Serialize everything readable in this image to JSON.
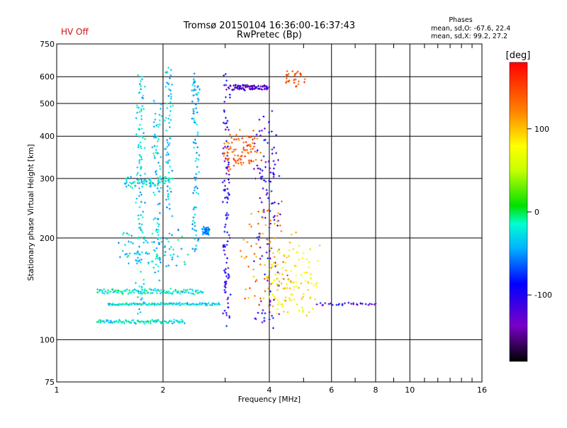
{
  "header": {
    "status": "HV Off",
    "title_line1": "Tromsø 20150104 16:36:00-16:37:43",
    "title_line2": "RwPretec (Bp)",
    "phase_heading": "Phases",
    "phase_o": "mean, sd,O: -67.6, 22.4",
    "phase_x": "mean, sd,X:  99.2, 27.2"
  },
  "chart_data": {
    "type": "scatter",
    "xlabel": "Frequency [MHz]",
    "ylabel": "Stationary phase Virtual Height [km]",
    "x_scale": "log",
    "y_scale": "log",
    "xlim": [
      1,
      16
    ],
    "ylim": [
      75,
      750
    ],
    "x_ticks": [
      {
        "value": 1,
        "label": "1"
      },
      {
        "value": 2,
        "label": "2"
      },
      {
        "value": 4,
        "label": "4"
      },
      {
        "value": 6,
        "label": "6"
      },
      {
        "value": 8,
        "label": "8"
      },
      {
        "value": 10,
        "label": "10"
      },
      {
        "value": 16,
        "label": "16"
      }
    ],
    "x_grid": [
      2,
      4,
      6,
      8,
      10
    ],
    "x_minor": [
      3,
      5,
      7,
      9,
      11,
      12,
      13,
      14,
      15
    ],
    "y_ticks": [
      {
        "value": 75,
        "label": "75"
      },
      {
        "value": 100,
        "label": "100"
      },
      {
        "value": 200,
        "label": "200"
      },
      {
        "value": 300,
        "label": "300"
      },
      {
        "value": 400,
        "label": "400"
      },
      {
        "value": 500,
        "label": "500"
      },
      {
        "value": 600,
        "label": "600"
      },
      {
        "value": 750,
        "label": "750"
      }
    ],
    "y_grid": [
      100,
      200,
      300,
      400,
      500,
      600
    ],
    "colorbar": {
      "label": "[deg]",
      "range": [
        -180,
        180
      ],
      "ticks": [
        {
          "value": 100,
          "label": "100"
        },
        {
          "value": 0,
          "label": "0"
        },
        {
          "value": -100,
          "label": "-100"
        }
      ]
    },
    "traces": [
      {
        "f0": 1.3,
        "f1": 2.3,
        "h0": 112,
        "h1": 114,
        "phase": -25,
        "n": 90,
        "jf": 0.004,
        "jh": 0.008
      },
      {
        "f0": 1.4,
        "f1": 2.9,
        "h0": 127,
        "h1": 128,
        "phase": -25,
        "n": 120,
        "jf": 0.004,
        "jh": 0.006
      },
      {
        "f0": 1.3,
        "f1": 2.6,
        "h0": 137,
        "h1": 141,
        "phase": -22,
        "n": 110,
        "jf": 0.004,
        "jh": 0.006
      },
      {
        "f0": 1.5,
        "f1": 2.3,
        "h0": 165,
        "h1": 210,
        "phase": -30,
        "n": 80,
        "jf": 0.03,
        "jh": 0.04
      },
      {
        "f0": 1.55,
        "f1": 2.1,
        "h0": 285,
        "h1": 300,
        "phase": -28,
        "n": 70,
        "jf": 0.02,
        "jh": 0.02
      },
      {
        "f0": 1.7,
        "f1": 1.75,
        "h0": 120,
        "h1": 600,
        "phase": -30,
        "n": 110,
        "jf": 0.02,
        "jh": 0.02
      },
      {
        "f0": 1.9,
        "f1": 1.95,
        "h0": 140,
        "h1": 520,
        "phase": -35,
        "n": 80,
        "jf": 0.02,
        "jh": 0.02
      },
      {
        "f0": 2.05,
        "f1": 2.1,
        "h0": 230,
        "h1": 640,
        "phase": -35,
        "n": 70,
        "jf": 0.02,
        "jh": 0.02
      },
      {
        "f0": 2.45,
        "f1": 2.5,
        "h0": 180,
        "h1": 620,
        "phase": -40,
        "n": 90,
        "jf": 0.02,
        "jh": 0.02
      },
      {
        "f0": 2.6,
        "f1": 2.7,
        "h0": 205,
        "h1": 215,
        "phase": -60,
        "n": 40,
        "jf": 0.01,
        "jh": 0.01
      },
      {
        "f0": 3.0,
        "f1": 3.05,
        "h0": 110,
        "h1": 600,
        "phase": -110,
        "n": 110,
        "jf": 0.02,
        "jh": 0.03
      },
      {
        "f0": 3.1,
        "f1": 3.9,
        "h0": 555,
        "h1": 560,
        "phase": -125,
        "n": 90,
        "jf": 0.03,
        "jh": 0.015
      },
      {
        "f0": 3.0,
        "f1": 3.7,
        "h0": 320,
        "h1": 410,
        "phase": 140,
        "n": 90,
        "jf": 0.03,
        "jh": 0.03
      },
      {
        "f0": 3.7,
        "f1": 4.2,
        "h0": 110,
        "h1": 470,
        "phase": -110,
        "n": 120,
        "jf": 0.03,
        "jh": 0.05
      },
      {
        "f0": 3.4,
        "f1": 4.6,
        "h0": 125,
        "h1": 250,
        "phase": 120,
        "n": 80,
        "jf": 0.04,
        "jh": 0.05
      },
      {
        "f0": 4.0,
        "f1": 5.4,
        "h0": 120,
        "h1": 185,
        "phase": 80,
        "n": 110,
        "jf": 0.03,
        "jh": 0.04
      },
      {
        "f0": 4.4,
        "f1": 5.0,
        "h0": 570,
        "h1": 620,
        "phase": 145,
        "n": 30,
        "jf": 0.02,
        "jh": 0.02
      },
      {
        "f0": 5.5,
        "f1": 8.0,
        "h0": 127,
        "h1": 128,
        "phase": -110,
        "n": 30,
        "jf": 0.01,
        "jh": 0.006
      }
    ]
  }
}
